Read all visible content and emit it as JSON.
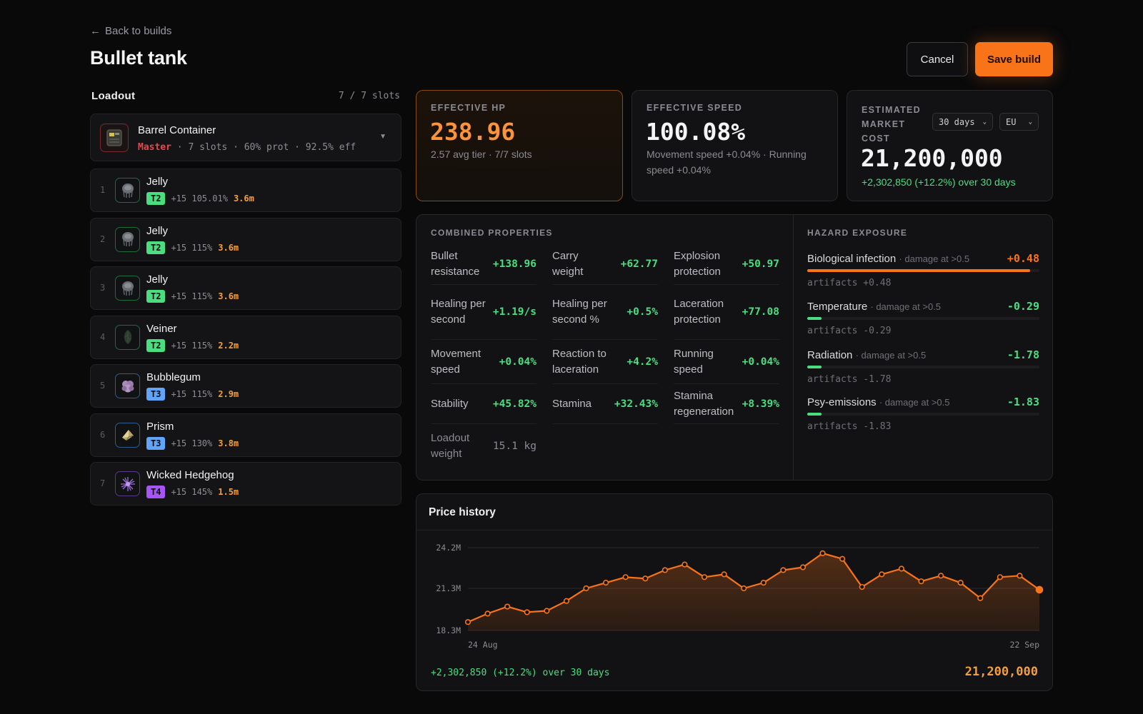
{
  "header": {
    "back_label": "Back to builds",
    "title": "Bullet tank",
    "cancel_label": "Cancel",
    "save_label": "Save build"
  },
  "loadout": {
    "title": "Loadout",
    "slots": "7 / 7 slots",
    "container": {
      "name": "Barrel Container",
      "rank": "Master",
      "details": "· 7 slots · 60% prot · 92.5% eff"
    },
    "artifacts": [
      {
        "num": "1",
        "name": "Jelly",
        "tier": "T2",
        "tier_color": "#4ade80",
        "upgrade": "+15 105.01%",
        "price": "3.6m",
        "icon": "jelly-icon"
      },
      {
        "num": "2",
        "name": "Jelly",
        "tier": "T2",
        "tier_color": "#4ade80",
        "upgrade": "+15 115%",
        "price": "3.6m",
        "icon": "jelly-icon"
      },
      {
        "num": "3",
        "name": "Jelly",
        "tier": "T2",
        "tier_color": "#4ade80",
        "upgrade": "+15 115%",
        "price": "3.6m",
        "icon": "jelly-icon"
      },
      {
        "num": "4",
        "name": "Veiner",
        "tier": "T2",
        "tier_color": "#4ade80",
        "upgrade": "+15 115%",
        "price": "2.2m",
        "icon": "veiner-icon"
      },
      {
        "num": "5",
        "name": "Bubblegum",
        "tier": "T3",
        "tier_color": "#60a5fa",
        "upgrade": "+15 115%",
        "price": "2.9m",
        "icon": "bubblegum-icon"
      },
      {
        "num": "6",
        "name": "Prism",
        "tier": "T3",
        "tier_color": "#60a5fa",
        "upgrade": "+15 130%",
        "price": "3.8m",
        "icon": "prism-icon"
      },
      {
        "num": "7",
        "name": "Wicked Hedgehog",
        "tier": "T4",
        "tier_color": "#a855f7",
        "upgrade": "+15 145%",
        "price": "1.5m",
        "icon": "hedgehog-icon"
      }
    ]
  },
  "stats": {
    "hp": {
      "label": "EFFECTIVE HP",
      "value": "238.96",
      "sub": "2.57 avg tier · 7/7 slots"
    },
    "speed": {
      "label": "EFFECTIVE SPEED",
      "value": "100.08%",
      "sub": "Movement speed +0.04% · Running speed +0.04%"
    },
    "market": {
      "label": "ESTIMATED MARKET COST",
      "value": "21,200,000",
      "change": "+2,302,850 (+12.2%) over 30 days",
      "period": "30 days",
      "region": "EU"
    }
  },
  "combined": {
    "label": "COMBINED PROPERTIES",
    "props": [
      {
        "name": "Bullet resistance",
        "value": "+138.96"
      },
      {
        "name": "Carry weight",
        "value": "+62.77"
      },
      {
        "name": "Explosion protection",
        "value": "+50.97"
      },
      {
        "name": "Healing per second",
        "value": "+1.19/s"
      },
      {
        "name": "Healing per second %",
        "value": "+0.5%"
      },
      {
        "name": "Laceration protection",
        "value": "+77.08"
      },
      {
        "name": "Movement speed",
        "value": "+0.04%"
      },
      {
        "name": "Reaction to laceration",
        "value": "+4.2%"
      },
      {
        "name": "Running speed",
        "value": "+0.04%"
      },
      {
        "name": "Stability",
        "value": "+45.82%"
      },
      {
        "name": "Stamina",
        "value": "+32.43%"
      },
      {
        "name": "Stamina regeneration",
        "value": "+8.39%"
      },
      {
        "name": "Loadout weight",
        "value": "15.1 kg"
      }
    ]
  },
  "hazard": {
    "label": "HAZARD EXPOSURE",
    "items": [
      {
        "name": "Biological infection",
        "note": "· damage at >0.5",
        "value": "+0.48",
        "color": "#f97318",
        "fill_fraction": 0.96,
        "artifacts": "artifacts +0.48"
      },
      {
        "name": "Temperature",
        "note": "· damage at >0.5",
        "value": "-0.29",
        "color": "#4ade80",
        "fill_fraction": 0.06,
        "artifacts": "artifacts -0.29"
      },
      {
        "name": "Radiation",
        "note": "· damage at >0.5",
        "value": "-1.78",
        "color": "#4ade80",
        "fill_fraction": 0.06,
        "artifacts": "artifacts -1.78"
      },
      {
        "name": "Psy-emissions",
        "note": "· damage at >0.5",
        "value": "-1.83",
        "color": "#4ade80",
        "fill_fraction": 0.06,
        "artifacts": "artifacts -1.83"
      }
    ]
  },
  "price_history": {
    "title": "Price history",
    "change": "+2,302,850 (+12.2%) over 30 days",
    "current": "21,200,000"
  },
  "chart_data": {
    "type": "line",
    "title": "Price history",
    "x": [
      "24 Aug",
      "25 Aug",
      "26 Aug",
      "27 Aug",
      "28 Aug",
      "29 Aug",
      "30 Aug",
      "31 Aug",
      "1 Sep",
      "2 Sep",
      "3 Sep",
      "4 Sep",
      "5 Sep",
      "6 Sep",
      "7 Sep",
      "8 Sep",
      "9 Sep",
      "10 Sep",
      "11 Sep",
      "12 Sep",
      "13 Sep",
      "14 Sep",
      "15 Sep",
      "16 Sep",
      "17 Sep",
      "18 Sep",
      "19 Sep",
      "20 Sep",
      "21 Sep",
      "22 Sep"
    ],
    "x_tick_labels": [
      "24 Aug",
      "22 Sep"
    ],
    "values": [
      18.9,
      19.5,
      20.0,
      19.6,
      19.7,
      20.4,
      21.3,
      21.7,
      22.1,
      22.0,
      22.6,
      23.0,
      22.1,
      22.3,
      21.3,
      21.7,
      22.6,
      22.8,
      23.8,
      23.4,
      21.4,
      22.3,
      22.7,
      21.8,
      22.2,
      21.7,
      20.6,
      22.1,
      22.2,
      21.2
    ],
    "series": [
      {
        "values": "values",
        "color": "#f97318"
      }
    ],
    "y_ticks": [
      "24.2M",
      "21.3M",
      "18.3M"
    ],
    "y_tick_values": [
      24.2,
      21.3,
      18.3
    ],
    "ylim": [
      18.3,
      24.2
    ],
    "grid": true,
    "area_fill": true
  }
}
